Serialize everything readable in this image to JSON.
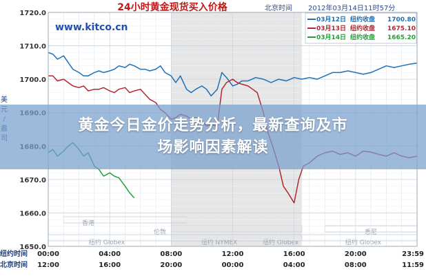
{
  "overlay": {
    "line1": "黄金今日金价走势分析，最新查询及市",
    "line2": "场影响因素解读"
  },
  "header": {
    "title": "24小时黄金现货买入价格",
    "site": "www.kitco.cn",
    "clock_label": "北京时间",
    "datetime": "2012年03月14日11时57分"
  },
  "y_axis_label_chars": [
    "美",
    "元",
    "/",
    "盎",
    "司"
  ],
  "legend": [
    {
      "date": "03月12日",
      "label": "纽约收盘",
      "value": "1700.80",
      "color": "#1c6fb8"
    },
    {
      "date": "03月13日",
      "label": "纽约收盘",
      "value": "1675.10",
      "color": "#b3262d"
    },
    {
      "date": "03月14日",
      "label": "纽约收盘",
      "value": "1665.20",
      "color": "#22a038"
    }
  ],
  "sessions": [
    {
      "name": "香港",
      "start": 1.0,
      "end": 9.0
    },
    {
      "name": "伦敦",
      "start": 8.0,
      "end": 16.5
    },
    {
      "name": "纽约 NYMEX",
      "start": 8.0,
      "end": 16.5
    },
    {
      "name": "纽约 Globex",
      "start": 0.0,
      "end": 11.0
    },
    {
      "name": "悉尼",
      "start": 18.0,
      "end": 24.0
    },
    {
      "name": "纽约 Globex",
      "start": 13.0,
      "end": 24.0
    }
  ],
  "session_labels": {
    "hongkong": "香港",
    "london": "伦敦",
    "nymex": "纽约 NYMEX",
    "globex1": "纽约 Globex",
    "globex2": "纽约 Globex",
    "globex3": "纽约 Globex",
    "sydney": "悉尼"
  },
  "x_rows": [
    {
      "label": "纽约时间",
      "ticks": [
        "00:00",
        "04:00",
        "08:00",
        "12:00",
        "16:00",
        "20:00",
        "23:59"
      ]
    },
    {
      "label": "北京时间",
      "ticks": [
        "12:00",
        "16:00",
        "20:00",
        "00:00",
        "04:00",
        "08:00",
        "11:59"
      ]
    }
  ],
  "chart_data": {
    "type": "line",
    "title": "24小时黄金现货买入价格",
    "ylabel": "美元/盎司",
    "xlabel": "",
    "ylim": [
      1650,
      1720
    ],
    "xlim": [
      0,
      24
    ],
    "y_ticks": [
      "1650.0",
      "1660.0",
      "1670.0",
      "1680.0",
      "1690.0",
      "1700.0",
      "1710.0",
      "1720.0"
    ],
    "y_tick_values": [
      1650,
      1660,
      1670,
      1680,
      1690,
      1700,
      1710,
      1720
    ],
    "grid": true,
    "legend_position": "top-right",
    "series": [
      {
        "name": "03月12日",
        "color": "#1c6fb8",
        "x": [
          0,
          0.3,
          0.6,
          1.0,
          1.3,
          1.6,
          2.0,
          2.3,
          2.6,
          3.0,
          3.3,
          3.6,
          4.0,
          4.3,
          4.6,
          5.0,
          5.3,
          5.6,
          6.0,
          6.3,
          6.6,
          7.0,
          7.3,
          7.6,
          8.0,
          8.3,
          8.6,
          9.0,
          9.3,
          9.6,
          10.0,
          10.3,
          10.6,
          11.0,
          11.3,
          11.6,
          12.0,
          12.3,
          12.6,
          13.0,
          13.5,
          14.0,
          14.5,
          15.0,
          15.5,
          16.0,
          16.5,
          17.0,
          17.5,
          18.0,
          18.5,
          19.0,
          19.5,
          20.0,
          20.5,
          21.0,
          21.5,
          22.0,
          22.5,
          23.0,
          23.5,
          24.0
        ],
        "y": [
          1708,
          1707.5,
          1706,
          1707,
          1705,
          1703,
          1702,
          1701,
          1701,
          1702,
          1702.5,
          1702,
          1702.5,
          1703,
          1704,
          1703.5,
          1704.5,
          1704,
          1703,
          1703,
          1702.5,
          1703,
          1704,
          1702,
          1701,
          1699,
          1701,
          1697,
          1696,
          1697,
          1698,
          1697,
          1695,
          1697,
          1702,
          1700.5,
          1698,
          1698.5,
          1699.5,
          1699.5,
          1700.5,
          1700,
          1699,
          1700,
          1699.5,
          1700.5,
          1700,
          1700.5,
          1700,
          1701,
          1702,
          1702,
          1702.5,
          1702,
          1701.5,
          1702,
          1703,
          1704,
          1703.5,
          1704,
          1704.5,
          1704.8
        ]
      },
      {
        "name": "03月13日",
        "color": "#b3262d",
        "x": [
          0,
          0.3,
          0.6,
          1.0,
          1.3,
          1.6,
          2.0,
          2.3,
          2.6,
          3.0,
          3.3,
          3.6,
          4.0,
          4.3,
          4.6,
          5.0,
          5.3,
          5.6,
          6.0,
          6.3,
          6.6,
          7.0,
          7.3,
          7.6,
          8.0,
          8.3,
          8.6,
          9.0,
          9.3,
          9.6,
          10.0,
          10.3,
          10.6,
          11.0,
          11.3,
          11.6,
          12.0,
          12.3,
          12.6,
          13.0,
          13.3,
          13.6,
          14.0,
          14.3,
          14.6,
          15.0,
          15.3,
          15.6,
          16.0,
          16.3,
          16.6,
          17.0,
          17.5,
          18.0,
          18.5,
          19.0,
          19.5,
          20.0,
          20.5,
          21.0,
          21.5,
          22.0,
          22.5,
          23.0,
          23.5,
          24.0
        ],
        "y": [
          1701,
          1701,
          1699.5,
          1700,
          1699,
          1698,
          1697.5,
          1698,
          1696.5,
          1697,
          1697,
          1697.5,
          1696.5,
          1696,
          1697,
          1697.5,
          1696,
          1696.5,
          1697,
          1695.5,
          1694,
          1693,
          1691,
          1690,
          1688,
          1688.5,
          1689.5,
          1689,
          1688,
          1688.5,
          1687.5,
          1686,
          1686.5,
          1686,
          1697,
          1699,
          1700,
          1699,
          1698.5,
          1698,
          1697,
          1696,
          1690,
          1684,
          1680,
          1674,
          1668,
          1666,
          1663,
          1670,
          1674,
          1675,
          1677,
          1678,
          1678.5,
          1677.5,
          1678,
          1677,
          1678.5,
          1678.2,
          1677.5,
          1677,
          1678,
          1677,
          1676.5,
          1677
        ]
      },
      {
        "name": "03月14日",
        "color": "#22a038",
        "x": [
          0,
          0.3,
          0.6,
          1.0,
          1.3,
          1.6,
          2.0,
          2.3,
          2.6,
          3.0,
          3.3,
          3.6,
          4.0,
          4.3,
          4.6,
          5.0,
          5.3,
          5.6
        ],
        "y": [
          1678,
          1679,
          1677,
          1678.5,
          1680,
          1681,
          1679,
          1677,
          1678,
          1674,
          1673,
          1671,
          1672,
          1671,
          1670.5,
          1668,
          1666,
          1664.5
        ]
      }
    ]
  }
}
